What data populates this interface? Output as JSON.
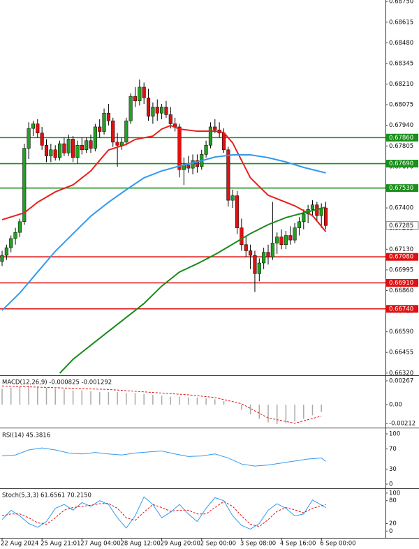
{
  "chart_data": [
    {
      "type": "candlestick",
      "categories": [
        "22 Aug 2024",
        null,
        null,
        null,
        null,
        null,
        null,
        null,
        null,
        "25 Aug 21:01",
        null,
        null,
        null,
        null,
        null,
        null,
        null,
        null,
        "27 Aug 04:00",
        null,
        null,
        null,
        null,
        null,
        null,
        null,
        null,
        "28 Aug 12:00",
        null,
        null,
        null,
        null,
        null,
        null,
        null,
        null,
        "29 Aug 20:00",
        null,
        null,
        null,
        null,
        null,
        null,
        null,
        null,
        "2 Sep 00:00",
        null,
        null,
        null,
        null,
        null,
        null,
        null,
        null,
        "3 Sep 08:00",
        null,
        null,
        null,
        null,
        null,
        null,
        null,
        null,
        "4 Sep 16:00",
        null,
        null,
        null,
        null,
        null,
        null,
        null,
        null,
        "6 Sep 00:00",
        null
      ],
      "open": [
        0.6705,
        0.6709,
        0.6714,
        0.672,
        0.6724,
        0.6731,
        0.6779,
        0.6792,
        0.6795,
        0.6789,
        0.6781,
        0.6774,
        0.6778,
        0.6773,
        0.6782,
        0.6776,
        0.6785,
        0.6773,
        0.6781,
        0.6778,
        0.6784,
        0.6779,
        0.6793,
        0.679,
        0.6802,
        0.6797,
        0.6783,
        0.6781,
        0.6783,
        0.6797,
        0.6813,
        0.681,
        0.6819,
        0.6812,
        0.68,
        0.6806,
        0.6802,
        0.6806,
        0.6801,
        0.6795,
        0.6793,
        0.6765,
        0.6768,
        0.6766,
        0.6771,
        0.6767,
        0.6775,
        0.6781,
        0.6793,
        0.6791,
        0.6789,
        0.6778,
        0.6745,
        0.6748,
        0.6727,
        0.6716,
        0.6712,
        0.6709,
        0.6697,
        0.6704,
        0.6711,
        0.6708,
        0.6717,
        0.6721,
        0.6716,
        0.6722,
        0.6719,
        0.6727,
        0.6731,
        0.6736,
        0.6739,
        0.6742,
        0.6735,
        0.674
      ],
      "high": [
        0.6712,
        0.6716,
        0.6722,
        0.6727,
        0.6733,
        0.6782,
        0.6796,
        0.6797,
        0.6798,
        0.6793,
        0.6785,
        0.6782,
        0.6781,
        0.6784,
        0.6786,
        0.6788,
        0.6787,
        0.6784,
        0.6786,
        0.6786,
        0.6788,
        0.6795,
        0.6798,
        0.6805,
        0.6808,
        0.6799,
        0.6789,
        0.6786,
        0.6799,
        0.6815,
        0.6819,
        0.6824,
        0.6822,
        0.6818,
        0.6809,
        0.6811,
        0.6808,
        0.681,
        0.6806,
        0.6799,
        0.6795,
        0.6773,
        0.6774,
        0.6775,
        0.6775,
        0.6778,
        0.6784,
        0.6796,
        0.6798,
        0.6796,
        0.6792,
        0.678,
        0.6752,
        0.6751,
        0.6733,
        0.6722,
        0.6716,
        0.6712,
        0.6707,
        0.6714,
        0.6716,
        0.6744,
        0.6724,
        0.6726,
        0.6725,
        0.6728,
        0.673,
        0.6734,
        0.6739,
        0.6742,
        0.6745,
        0.6744,
        0.6743,
        0.6744
      ],
      "low": [
        0.6702,
        0.6706,
        0.6711,
        0.6716,
        0.6721,
        0.6729,
        0.6772,
        0.6787,
        0.6786,
        0.6778,
        0.677,
        0.677,
        0.6771,
        0.6771,
        0.6774,
        0.6774,
        0.677,
        0.6769,
        0.6775,
        0.6776,
        0.6776,
        0.6777,
        0.6786,
        0.6788,
        0.6794,
        0.678,
        0.6767,
        0.6778,
        0.6781,
        0.6795,
        0.6806,
        0.6807,
        0.6808,
        0.6797,
        0.6795,
        0.6797,
        0.6798,
        0.6799,
        0.6792,
        0.679,
        0.676,
        0.6755,
        0.6763,
        0.6762,
        0.6763,
        0.6765,
        0.6773,
        0.6779,
        0.6789,
        0.6786,
        0.6776,
        0.6741,
        0.674,
        0.6723,
        0.6712,
        0.6708,
        0.67,
        0.6685,
        0.6692,
        0.67,
        0.6703,
        0.6706,
        0.671,
        0.6713,
        0.6713,
        0.6716,
        0.6717,
        0.6722,
        0.6726,
        0.673,
        0.6735,
        0.6732,
        0.6727,
        0.6726
      ],
      "close": [
        0.6709,
        0.6714,
        0.672,
        0.6724,
        0.6731,
        0.6779,
        0.6792,
        0.6795,
        0.6789,
        0.6781,
        0.6774,
        0.6778,
        0.6773,
        0.6782,
        0.6776,
        0.6785,
        0.6773,
        0.6781,
        0.6778,
        0.6784,
        0.6779,
        0.6793,
        0.679,
        0.6802,
        0.6797,
        0.6783,
        0.6781,
        0.6783,
        0.6797,
        0.6813,
        0.681,
        0.6819,
        0.6812,
        0.68,
        0.6806,
        0.6802,
        0.6806,
        0.6801,
        0.6795,
        0.6793,
        0.6765,
        0.6768,
        0.6766,
        0.6771,
        0.6767,
        0.6775,
        0.6781,
        0.6793,
        0.6791,
        0.6789,
        0.6778,
        0.6745,
        0.6748,
        0.6727,
        0.6716,
        0.6712,
        0.6709,
        0.6697,
        0.6704,
        0.6711,
        0.6708,
        0.6717,
        0.6721,
        0.6716,
        0.6722,
        0.6719,
        0.6727,
        0.6731,
        0.6736,
        0.6739,
        0.6742,
        0.6735,
        0.674,
        0.67285
      ],
      "up_color": "#22a022",
      "down_color": "#dd1111",
      "moving_averages": [
        {
          "color": "#e8201c",
          "x": [
            0,
            5,
            8,
            12,
            16,
            20,
            22,
            24,
            28,
            30,
            34,
            36,
            38,
            40,
            44,
            48,
            50,
            52,
            54,
            56,
            60,
            62,
            66,
            70,
            73
          ],
          "values": [
            0.67323,
            0.67368,
            0.67437,
            0.67505,
            0.67551,
            0.67642,
            0.67711,
            0.67779,
            0.67816,
            0.67848,
            0.6787,
            0.67916,
            0.67939,
            0.67916,
            0.67902,
            0.67902,
            0.67893,
            0.67825,
            0.67711,
            0.67597,
            0.67483,
            0.6746,
            0.67414,
            0.6735,
            0.67245
          ]
        },
        {
          "color": "#3399ee",
          "x": [
            0,
            4,
            8,
            12,
            16,
            20,
            24,
            28,
            32,
            36,
            40,
            44,
            48,
            52,
            56,
            60,
            64,
            68,
            73
          ],
          "values": [
            0.6673,
            0.66844,
            0.66981,
            0.67117,
            0.67232,
            0.67346,
            0.67437,
            0.67519,
            0.67597,
            0.67642,
            0.67674,
            0.67701,
            0.67733,
            0.67747,
            0.67747,
            0.67729,
            0.67701,
            0.67665,
            0.67629
          ]
        },
        {
          "color": "#1a8a1a",
          "x": [
            13,
            16,
            20,
            24,
            28,
            32,
            36,
            40,
            44,
            48,
            52,
            56,
            60,
            64,
            68,
            73
          ],
          "values": [
            0.66319,
            0.6641,
            0.66502,
            0.66593,
            0.66684,
            0.66775,
            0.66889,
            0.66981,
            0.67035,
            0.67095,
            0.67163,
            0.67232,
            0.67291,
            0.67337,
            0.67368,
            0.67405
          ]
        }
      ],
      "levels": [
        {
          "value": 0.6786,
          "label": "0.67860",
          "color": "#1a8f1a"
        },
        {
          "value": 0.6769,
          "label": "0.67690",
          "color": "#1a8f1a"
        },
        {
          "value": 0.6753,
          "label": "0.67530",
          "color": "#1a8f1a"
        },
        {
          "value": 0.6708,
          "label": "0.67080",
          "color": "#e01010"
        },
        {
          "value": 0.6691,
          "label": "0.66910",
          "color": "#e01010"
        },
        {
          "value": 0.6674,
          "label": "0.66740",
          "color": "#e01010"
        }
      ],
      "last_price": 0.67285,
      "ylim": [
        0.6631,
        0.6876
      ],
      "yticks": [
        {
          "value": 0.6875,
          "label": "0.68750"
        },
        0.68615,
        {
          "value": 0.6848,
          "label": "0.68480"
        },
        0.68345,
        {
          "value": 0.6821,
          "label": "0.68210"
        },
        0.68075,
        {
          "value": 0.6794,
          "label": "0.67940"
        },
        0.67805,
        {
          "value": 0.6767,
          "label": "0.67670"
        },
        0.67535,
        {
          "value": 0.674,
          "label": "0.67400"
        },
        0.67265,
        {
          "value": 0.6713,
          "label": "0.67130"
        },
        0.66995,
        {
          "value": 0.6686,
          "label": "0.66860"
        },
        0.66725,
        {
          "value": 0.6659,
          "label": "0.66590"
        },
        0.66455,
        {
          "value": 0.6632,
          "label": "0.66320"
        }
      ]
    },
    {
      "type": "macd",
      "title": "MACD(12,26,9) -0.000825 -0.001292",
      "histogram": {
        "color": "#aaaaaa",
        "x": [
          0,
          2,
          4,
          6,
          8,
          10,
          12,
          14,
          16,
          18,
          20,
          22,
          24,
          26,
          28,
          30,
          32,
          34,
          36,
          38,
          40,
          42,
          44,
          46,
          48,
          50,
          52,
          54,
          56,
          58,
          60,
          62,
          64,
          66,
          68,
          70,
          72
        ],
        "values": [
          0.0018,
          0.0019,
          0.002,
          0.0021,
          0.002,
          0.0019,
          0.0018,
          0.0017,
          0.0016,
          0.0016,
          0.0015,
          0.0014,
          0.0014,
          0.0014,
          0.0013,
          0.0013,
          0.0012,
          0.0011,
          0.001,
          0.0009,
          0.0009,
          0.0008,
          0.0008,
          0.0007,
          0.0006,
          0.0004,
          0,
          -0.0006,
          -0.0011,
          -0.0016,
          -0.002,
          -0.0022,
          -0.0021,
          -0.0019,
          -0.0016,
          -0.0012,
          -0.000825
        ]
      },
      "signal": {
        "color": "#e01010",
        "dash": true,
        "x": [
          0,
          6,
          12,
          18,
          24,
          30,
          36,
          42,
          48,
          54,
          60,
          66,
          72
        ],
        "values": [
          0.0021,
          0.002,
          0.0019,
          0.0018,
          0.0017,
          0.0015,
          0.0013,
          0.0011,
          0.0008,
          0.0001,
          -0.0015,
          -0.0021,
          -0.001292
        ]
      },
      "ylim": [
        -0.00251,
        0.00314
      ],
      "yticks": [
        0.00267,
        {
          "value": 0,
          "label": "0.00"
        },
        -0.00212
      ]
    },
    {
      "type": "line",
      "title": "RSI(14) 45.3816",
      "series": [
        {
          "color": "#3399ee",
          "dash": false,
          "x": [
            0,
            3,
            6,
            9,
            12,
            15,
            18,
            21,
            24,
            27,
            30,
            33,
            36,
            39,
            42,
            45,
            48,
            51,
            54,
            57,
            60,
            63,
            66,
            69,
            72,
            73
          ],
          "values": [
            56,
            58,
            68,
            72,
            68,
            62,
            60,
            63,
            60,
            58,
            62,
            64,
            66,
            60,
            55,
            56,
            60,
            52,
            40,
            36,
            38,
            42,
            46,
            50,
            52,
            45.3816
          ]
        }
      ],
      "ylim": [
        -8.3,
        108.3
      ],
      "yticks": [
        100,
        70,
        30,
        0
      ]
    },
    {
      "type": "line",
      "title": "Stoch(5,3,3) 61.6561 70.2150",
      "series": [
        {
          "color": "#3399ee",
          "dash": false,
          "x": [
            0,
            2,
            4,
            6,
            8,
            10,
            12,
            14,
            16,
            18,
            20,
            22,
            24,
            26,
            28,
            30,
            32,
            34,
            36,
            38,
            40,
            42,
            44,
            46,
            48,
            50,
            52,
            54,
            56,
            58,
            60,
            62,
            64,
            66,
            68,
            70,
            73
          ],
          "values": [
            30,
            55,
            40,
            20,
            10,
            25,
            60,
            70,
            55,
            75,
            65,
            80,
            70,
            35,
            8,
            40,
            90,
            70,
            35,
            50,
            70,
            45,
            25,
            60,
            88,
            80,
            40,
            15,
            5,
            20,
            55,
            72,
            60,
            40,
            45,
            82,
            61.6561
          ]
        },
        {
          "color": "#e01010",
          "dash": true,
          "x": [
            0,
            2,
            4,
            6,
            8,
            10,
            12,
            14,
            16,
            18,
            20,
            22,
            24,
            26,
            28,
            30,
            32,
            34,
            36,
            38,
            40,
            42,
            44,
            46,
            48,
            50,
            52,
            54,
            56,
            58,
            60,
            62,
            64,
            66,
            68,
            70,
            73
          ],
          "values": [
            40,
            45,
            45,
            35,
            22,
            18,
            35,
            55,
            62,
            65,
            68,
            72,
            73,
            60,
            35,
            28,
            50,
            70,
            62,
            52,
            55,
            55,
            45,
            45,
            62,
            78,
            65,
            40,
            18,
            12,
            30,
            52,
            62,
            56,
            48,
            60,
            70.215
          ]
        }
      ],
      "ylim": [
        -16,
        108.9
      ],
      "yticks": [
        100,
        80,
        20,
        0
      ]
    }
  ]
}
